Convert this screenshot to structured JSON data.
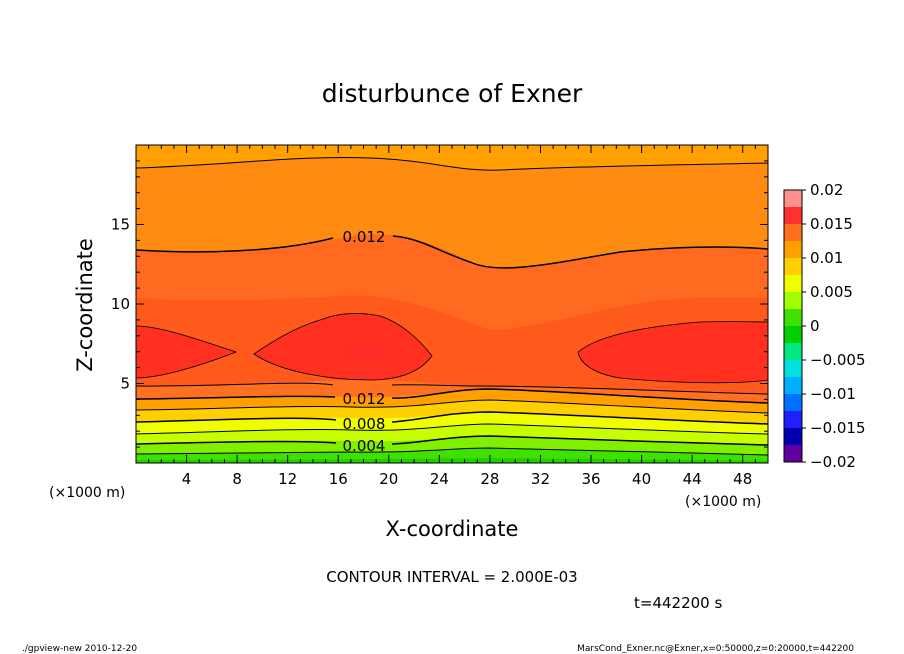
{
  "chart_data": {
    "type": "contour",
    "title": "disturbunce of Exner",
    "xlabel": "X-coordinate",
    "ylabel": "Z-coordinate",
    "x_unit": "(×1000 m)",
    "x_unit_right": "(×1000 m)",
    "z_unit": "(×1000 m)",
    "xlim": [
      0,
      50
    ],
    "ylim": [
      0,
      20
    ],
    "x_ticks": [
      4,
      8,
      12,
      16,
      20,
      24,
      28,
      32,
      36,
      40,
      44,
      48
    ],
    "y_ticks": [
      5,
      10,
      15
    ],
    "contour_interval_text": "CONTOUR INTERVAL = 2.000E-03",
    "time_text": "t=442200 s",
    "contour_labels": [
      {
        "text": "0.012",
        "x": 17.5,
        "z": 14.2
      },
      {
        "text": "0.012",
        "x": 17.5,
        "z": 4.0
      },
      {
        "text": "0.008",
        "x": 17.5,
        "z": 2.4
      },
      {
        "text": "0.004",
        "x": 17.5,
        "z": 1.1
      }
    ],
    "colorbar": {
      "range": [
        -0.02,
        0.02
      ],
      "ticks": [
        0.02,
        0.015,
        0.01,
        0.005,
        0,
        -0.005,
        -0.01,
        -0.015,
        -0.02
      ],
      "tick_labels": [
        "0.02",
        "0.015",
        "0.01",
        "0.005",
        "0",
        "−0.005",
        "−0.01",
        "−0.015",
        "−0.02"
      ],
      "colors_top_to_bottom": [
        "#ff9090",
        "#ff3030",
        "#ff7020",
        "#ffa000",
        "#ffd000",
        "#f0ff00",
        "#a0ff00",
        "#40e000",
        "#00d000",
        "#00e880",
        "#00e0e0",
        "#00b0ff",
        "#0070ff",
        "#2020ff",
        "#0000b0",
        "#6000a0"
      ]
    },
    "field_bands_z": [
      {
        "zmin": 0.0,
        "zmax": 0.5,
        "value_range": [
          0.0,
          0.002
        ],
        "color": "#40e000"
      },
      {
        "zmin": 0.5,
        "zmax": 1.2,
        "value_range": [
          0.002,
          0.004
        ],
        "color": "#a0ff00"
      },
      {
        "zmin": 1.2,
        "zmax": 2.0,
        "value_range": [
          0.004,
          0.006
        ],
        "color": "#f0ff00"
      },
      {
        "zmin": 2.0,
        "zmax": 2.8,
        "value_range": [
          0.006,
          0.008
        ],
        "color": "#ffd000"
      },
      {
        "zmin": 2.8,
        "zmax": 3.6,
        "value_range": [
          0.008,
          0.01
        ],
        "color": "#ffa000"
      },
      {
        "zmin": 3.6,
        "zmax": 4.6,
        "value_range": [
          0.01,
          0.012
        ],
        "color": "#ff7020"
      },
      {
        "zmin": 4.6,
        "zmax": 13.5,
        "value_range": [
          0.012,
          0.014
        ],
        "color": "#ff5020"
      },
      {
        "zmin": 13.5,
        "zmax": 18.6,
        "value_range": [
          0.01,
          0.012
        ],
        "color": "#ff8010"
      },
      {
        "zmin": 18.6,
        "zmax": 20.0,
        "value_range": [
          0.008,
          0.01
        ],
        "color": "#ffa000"
      }
    ]
  },
  "footer": {
    "left": "./gpview-new 2010-12-20",
    "right": "MarsCond_Exner.nc@Exner,x=0:50000,z=0:20000,t=442200"
  }
}
